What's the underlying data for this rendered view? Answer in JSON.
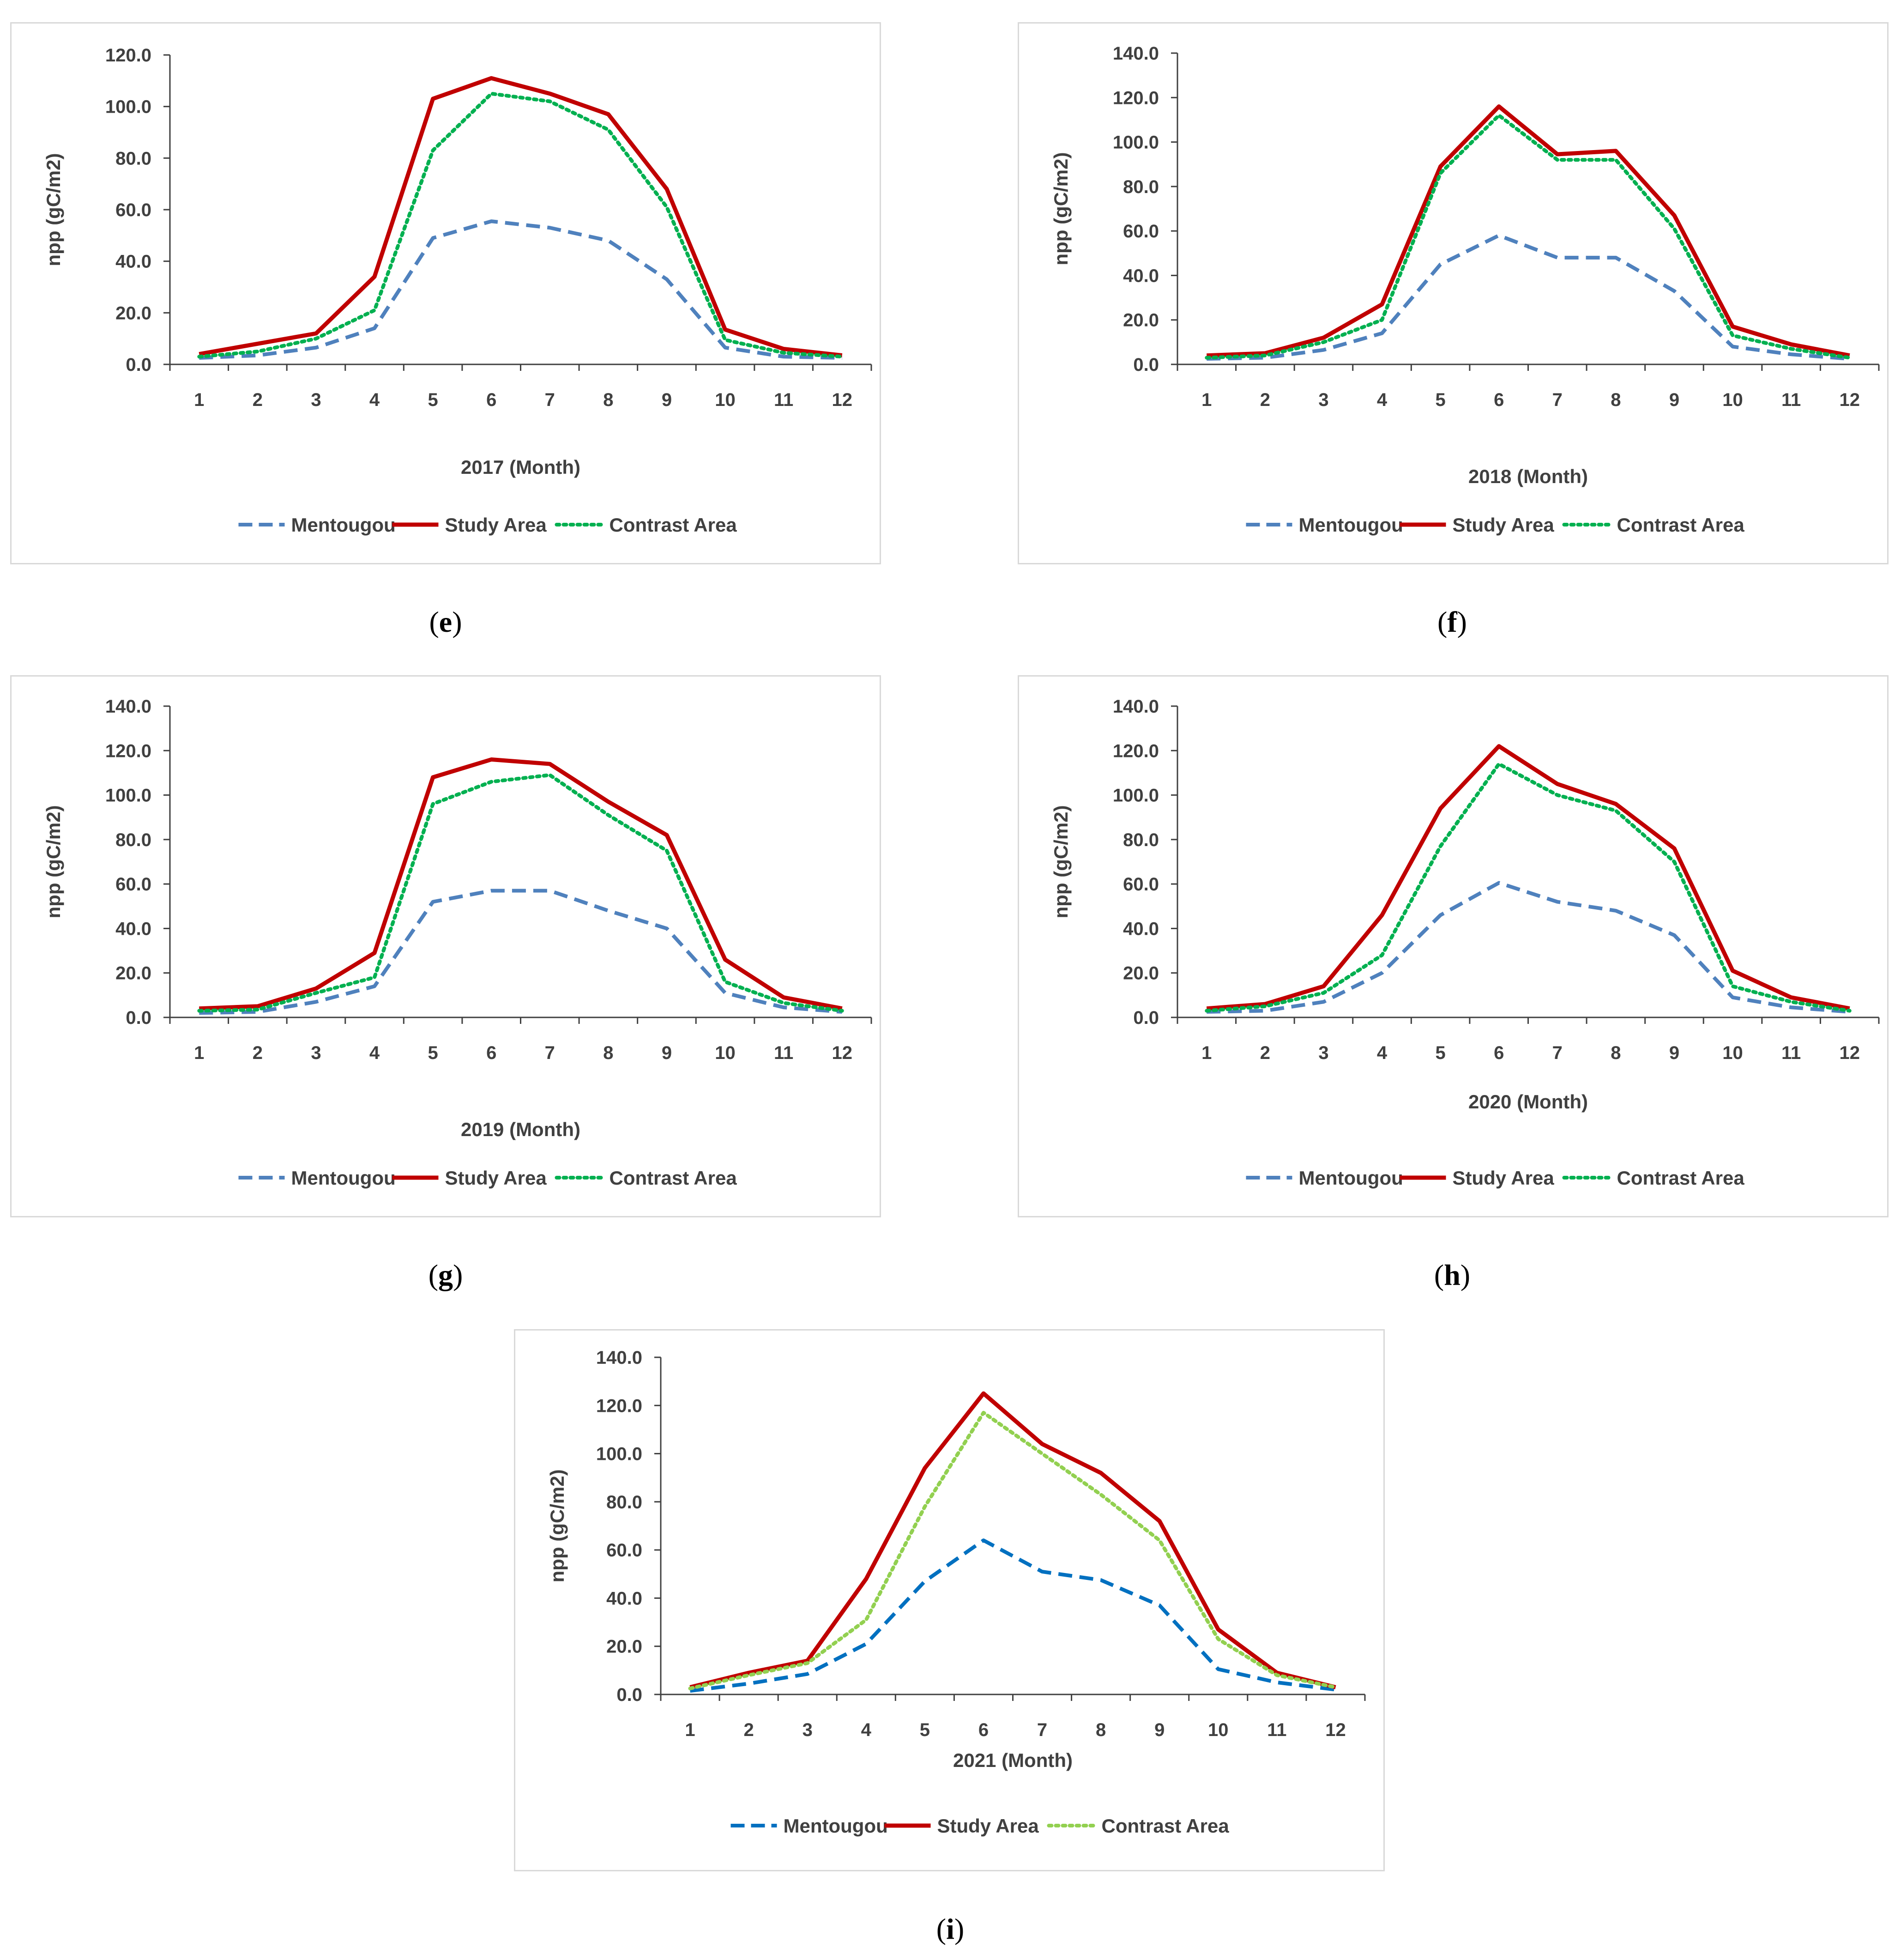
{
  "chart_data": [
    {
      "type": "line",
      "panel_label": "e",
      "xlabel": "2017 (Month)",
      "ylabel": "npp (gC/m2)",
      "categories": [
        "1",
        "2",
        "3",
        "4",
        "5",
        "6",
        "7",
        "8",
        "9",
        "10",
        "11",
        "12"
      ],
      "ylim": [
        0,
        120
      ],
      "yticks": [
        "0.0",
        "20.0",
        "40.0",
        "60.0",
        "80.0",
        "100.0",
        "120.0"
      ],
      "legend_position": "bottom",
      "series": [
        {
          "name": "Mentougou",
          "color": "#4f81bd",
          "dash": "dashed",
          "values": [
            2.5,
            3.5,
            6.5,
            14,
            49,
            55.5,
            53,
            48,
            33,
            6.5,
            3,
            2.5
          ]
        },
        {
          "name": "Study Area",
          "color": "#c00000",
          "dash": "solid",
          "values": [
            4,
            8,
            12,
            34,
            103,
            111,
            105,
            97,
            68,
            13.5,
            6,
            3.5
          ]
        },
        {
          "name": "Contrast Area",
          "color": "#00b050",
          "dash": "dotted",
          "values": [
            3,
            5,
            10,
            21,
            83,
            105,
            102,
            91,
            61,
            9.5,
            4.5,
            3
          ]
        }
      ]
    },
    {
      "type": "line",
      "panel_label": "f",
      "xlabel": "2018 (Month)",
      "ylabel": "npp (gC/m2)",
      "categories": [
        "1",
        "2",
        "3",
        "4",
        "5",
        "6",
        "7",
        "8",
        "9",
        "10",
        "11",
        "12"
      ],
      "ylim": [
        0,
        140
      ],
      "yticks": [
        "0.0",
        "20.0",
        "40.0",
        "60.0",
        "80.0",
        "100.0",
        "120.0",
        "140.0"
      ],
      "legend_position": "bottom",
      "series": [
        {
          "name": "Mentougou",
          "color": "#4f81bd",
          "dash": "dashed",
          "values": [
            2.5,
            3,
            6.5,
            14,
            45,
            58,
            48,
            48,
            33,
            8,
            4.5,
            2.5
          ]
        },
        {
          "name": "Study Area",
          "color": "#c00000",
          "dash": "solid",
          "values": [
            4,
            5,
            12,
            27,
            89,
            116,
            94.5,
            96,
            67,
            17,
            9,
            4
          ]
        },
        {
          "name": "Contrast Area",
          "color": "#00b050",
          "dash": "dotted",
          "values": [
            3,
            4,
            10,
            20,
            86,
            112,
            92,
            92,
            61,
            13,
            7,
            3
          ]
        }
      ]
    },
    {
      "type": "line",
      "panel_label": "g",
      "xlabel": "2019 (Month)",
      "ylabel": "npp (gC/m2)",
      "categories": [
        "1",
        "2",
        "3",
        "4",
        "5",
        "6",
        "7",
        "8",
        "9",
        "10",
        "11",
        "12"
      ],
      "ylim": [
        0,
        140
      ],
      "yticks": [
        "0.0",
        "20.0",
        "40.0",
        "60.0",
        "80.0",
        "100.0",
        "120.0",
        "140.0"
      ],
      "legend_position": "bottom",
      "series": [
        {
          "name": "Mentougou",
          "color": "#4f81bd",
          "dash": "dashed",
          "values": [
            2,
            2.5,
            7,
            14,
            52,
            57,
            57,
            48,
            40,
            11,
            4.5,
            2.5
          ]
        },
        {
          "name": "Study Area",
          "color": "#c00000",
          "dash": "solid",
          "values": [
            4,
            5,
            13,
            29,
            108,
            116,
            114,
            97,
            82,
            26,
            9,
            4
          ]
        },
        {
          "name": "Contrast Area",
          "color": "#00b050",
          "dash": "dotted",
          "values": [
            3,
            3.5,
            11,
            18,
            96,
            106,
            109,
            91,
            75,
            16,
            6.5,
            3
          ]
        }
      ]
    },
    {
      "type": "line",
      "panel_label": "h",
      "xlabel": "2020 (Month)",
      "ylabel": "npp (gC/m2)",
      "categories": [
        "1",
        "2",
        "3",
        "4",
        "5",
        "6",
        "7",
        "8",
        "9",
        "10",
        "11",
        "12"
      ],
      "ylim": [
        0,
        140
      ],
      "yticks": [
        "0.0",
        "20.0",
        "40.0",
        "60.0",
        "80.0",
        "100.0",
        "120.0",
        "140.0"
      ],
      "legend_position": "bottom",
      "series": [
        {
          "name": "Mentougou",
          "color": "#4f81bd",
          "dash": "dashed",
          "values": [
            2.5,
            3,
            7,
            20,
            46,
            60.5,
            52,
            48,
            37,
            9,
            4.5,
            2.5
          ]
        },
        {
          "name": "Study Area",
          "color": "#c00000",
          "dash": "solid",
          "values": [
            4,
            6,
            14,
            46,
            94,
            122,
            105,
            96,
            76,
            21,
            9,
            4
          ]
        },
        {
          "name": "Contrast Area",
          "color": "#00b050",
          "dash": "dotted",
          "values": [
            3,
            5,
            11,
            28,
            77,
            114,
            100,
            93,
            70,
            14,
            7,
            3
          ]
        }
      ]
    },
    {
      "type": "line",
      "panel_label": "i",
      "xlabel": "2021 (Month)",
      "ylabel": "npp (gC/m2)",
      "categories": [
        "1",
        "2",
        "3",
        "4",
        "5",
        "6",
        "7",
        "8",
        "9",
        "10",
        "11",
        "12"
      ],
      "ylim": [
        0,
        140
      ],
      "yticks": [
        "0.0",
        "20.0",
        "40.0",
        "60.0",
        "80.0",
        "100.0",
        "120.0",
        "140.0"
      ],
      "legend_position": "bottom",
      "series": [
        {
          "name": "Mentougou",
          "color": "#0070c0",
          "dash": "dashed",
          "values": [
            1.5,
            4.5,
            8.5,
            21,
            47,
            64,
            51,
            47.5,
            37,
            10.5,
            5,
            2
          ]
        },
        {
          "name": "Study Area",
          "color": "#c00000",
          "dash": "solid",
          "values": [
            3,
            9,
            14,
            48,
            94,
            125,
            104,
            92,
            72,
            27,
            9,
            3
          ]
        },
        {
          "name": "Contrast Area",
          "color": "#92d050",
          "dash": "dotted",
          "values": [
            2.5,
            8,
            13,
            31,
            78,
            117,
            100,
            83,
            64,
            23,
            8,
            3
          ]
        }
      ]
    }
  ]
}
